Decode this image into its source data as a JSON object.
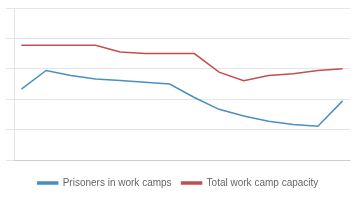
{
  "chart_data": {
    "type": "line",
    "x": [
      0,
      1,
      2,
      3,
      4,
      5,
      6,
      7,
      8,
      9,
      10,
      11,
      12,
      13
    ],
    "series": [
      {
        "name": "Prisoners in work camps",
        "color": "#4a8fc0",
        "values": [
          62,
          73,
          70,
          68,
          67,
          66,
          65,
          57,
          50,
          46,
          43,
          41,
          40,
          55
        ]
      },
      {
        "name": "Total work camp capacity",
        "color": "#c0504d",
        "values": [
          88,
          88,
          88,
          88,
          84,
          83,
          83,
          83,
          72,
          67,
          70,
          71,
          73,
          74
        ]
      }
    ],
    "xlim": [
      -0.3,
      13.3
    ],
    "ylim": [
      20,
      110
    ],
    "yticks": [
      20,
      38,
      56,
      74,
      92,
      110
    ],
    "grid": "y",
    "legend": "bottom",
    "tick_labels": false
  }
}
